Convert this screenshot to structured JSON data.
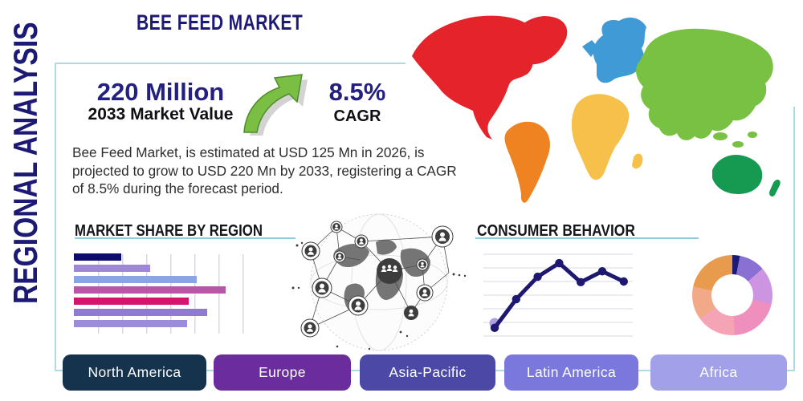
{
  "header": {
    "title": "BEE FEED MARKET",
    "sidebar_label": "REGIONAL ANALYSIS"
  },
  "stats": {
    "market_value": "220 Million",
    "market_value_label": "2033 Market Value",
    "cagr": "8.5%",
    "cagr_label": "CAGR"
  },
  "description": "Bee Feed Market, is estimated at USD 125 Mn in 2026, is projected to grow to USD 220 Mn by 2033, registering a CAGR of 8.5% during the forecast period.",
  "palette": {
    "navy_text": "#1d1a75",
    "frame_blue": "#aedbe8",
    "underline_blue": "#8fcbdd",
    "arrow_green": "#7abf44",
    "arrow_green_dark": "#4f8c2d",
    "grid_gray": "#d9d9e2"
  },
  "chart_data": [
    {
      "type": "bar",
      "title": "MARKET SHARE BY REGION",
      "orientation": "horizontal",
      "axis_labels_visible": false,
      "values_pct_of_axis": [
        28,
        45,
        73,
        90,
        68,
        79,
        67
      ],
      "bar_colors": [
        "#0d0c6d",
        "#9e86d8",
        "#8ba4e4",
        "#b558a8",
        "#d6146e",
        "#8f7cd2",
        "#9d8cda"
      ],
      "grid": "vertical"
    },
    {
      "type": "line",
      "title": "CONSUMER BEHAVIOR",
      "axis_labels_visible": false,
      "values": [
        0.6,
        2.7,
        4.35,
        5.35,
        3.95,
        4.75,
        4.0
      ],
      "ylim": [
        0,
        6
      ],
      "grid": "horizontal",
      "line_color": "#1e1870",
      "first_point_halo_color": "#b19fe0"
    },
    {
      "type": "donut",
      "title": "",
      "slices": [
        {
          "name": "navy",
          "pct": 3,
          "color": "#1b1b76"
        },
        {
          "name": "purple",
          "pct": 10.5,
          "color": "#8a70d3"
        },
        {
          "name": "orchid",
          "pct": 15,
          "color": "#cd94e1"
        },
        {
          "name": "pink",
          "pct": 20.5,
          "color": "#ee8fbd"
        },
        {
          "name": "light-pink",
          "pct": 16,
          "color": "#f5a4b6"
        },
        {
          "name": "peach",
          "pct": 13.5,
          "color": "#f2a987"
        },
        {
          "name": "orange",
          "pct": 21.5,
          "color": "#e99b4d"
        }
      ]
    }
  ],
  "map": {
    "regions": [
      {
        "name": "north-america",
        "color": "#e5232b"
      },
      {
        "name": "greenland",
        "color": "#e5232b"
      },
      {
        "name": "south-america",
        "color": "#ef8322"
      },
      {
        "name": "europe",
        "color": "#3f9ad6"
      },
      {
        "name": "africa",
        "color": "#f6c04a"
      },
      {
        "name": "asia",
        "color": "#79c143"
      },
      {
        "name": "australia",
        "color": "#169a52"
      },
      {
        "name": "new-zealand",
        "color": "#169a52"
      }
    ]
  },
  "region_buttons": [
    {
      "label": "North America",
      "color": "#16334e"
    },
    {
      "label": "Europe",
      "color": "#6b2d9d"
    },
    {
      "label": "Asia-Pacific",
      "color": "#4b49a5"
    },
    {
      "label": "Latin America",
      "color": "#7a78dd"
    },
    {
      "label": "Africa",
      "color": "#a2a0e8"
    }
  ]
}
